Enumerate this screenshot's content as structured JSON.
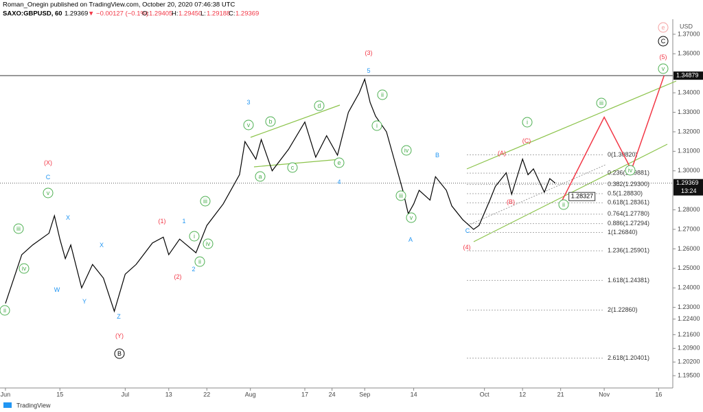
{
  "header": {
    "author_line": "Roman_Onegin published on TradingView.com, October 20, 2020 07:46:38 UTC",
    "symbol": "SAXO:GBPUSD, 60",
    "last": "1.29369",
    "change": "▼ −0.00127 (−0.1%)",
    "o_key": "O:",
    "o": "1.29405",
    "h_key": "H:",
    "h": "1.29450",
    "l_key": "L:",
    "l": "1.29188",
    "c_key": "C:",
    "c": "1.29369"
  },
  "chart_data": {
    "type": "line",
    "currency": "USD",
    "x": [
      0,
      3,
      5,
      8,
      9,
      10,
      11,
      12,
      14,
      16,
      18,
      20,
      22,
      24,
      27,
      29,
      30,
      32,
      35,
      37,
      40,
      43,
      44,
      46,
      47,
      49,
      52,
      55,
      57,
      59,
      61,
      63,
      65,
      66,
      67,
      68,
      70,
      72,
      73,
      74,
      75,
      76,
      78,
      79,
      81,
      82,
      84,
      86,
      87,
      89,
      90,
      92,
      93,
      94,
      95,
      96,
      97,
      99,
      100,
      101
    ],
    "series": [
      {
        "color": "#000000",
        "values": [
          1.232,
          1.257,
          1.262,
          1.268,
          1.277,
          1.265,
          1.255,
          1.262,
          1.24,
          1.252,
          1.245,
          1.228,
          1.247,
          1.252,
          1.263,
          1.266,
          1.257,
          1.265,
          1.258,
          1.272,
          1.283,
          1.298,
          1.315,
          1.306,
          1.316,
          1.3,
          1.311,
          1.325,
          1.307,
          1.318,
          1.308,
          1.33,
          1.34,
          1.347,
          1.335,
          1.328,
          1.32,
          1.3,
          1.29,
          1.278,
          1.283,
          1.29,
          1.285,
          1.297,
          1.29,
          1.282,
          1.275,
          1.27,
          1.272,
          1.285,
          1.292,
          1.299,
          1.288,
          1.297,
          1.306,
          1.298,
          1.301,
          1.289,
          1.296,
          1.2937
        ]
      }
    ],
    "projection": {
      "x": [
        102,
        110,
        115,
        121
      ],
      "values": [
        1.2833,
        1.3275,
        1.3005,
        1.3488
      ],
      "color": "#f23645",
      "label": "1.28327"
    },
    "xlim": [
      -1,
      122.6
    ],
    "xticks": [
      {
        "value": 0,
        "label": "Jun"
      },
      {
        "value": 10,
        "label": "15"
      },
      {
        "value": 22,
        "label": "Jul"
      },
      {
        "value": 30,
        "label": "13"
      },
      {
        "value": 37,
        "label": "22"
      },
      {
        "value": 45,
        "label": "Aug"
      },
      {
        "value": 55,
        "label": "17"
      },
      {
        "value": 60,
        "label": "24"
      },
      {
        "value": 66,
        "label": "Sep"
      },
      {
        "value": 75,
        "label": "14"
      },
      {
        "value": 88,
        "label": "Oct"
      },
      {
        "value": 95,
        "label": "12"
      },
      {
        "value": 102,
        "label": "21"
      },
      {
        "value": 110,
        "label": "Nov"
      },
      {
        "value": 120,
        "label": "16"
      }
    ],
    "ylim": [
      1.1887,
      1.377
    ],
    "yticks": [
      {
        "value": 1.37,
        "label": "1.37000"
      },
      {
        "value": 1.36,
        "label": "1.36000"
      },
      {
        "value": 1.34,
        "label": "1.34000"
      },
      {
        "value": 1.33,
        "label": "1.33000"
      },
      {
        "value": 1.32,
        "label": "1.32000"
      },
      {
        "value": 1.31,
        "label": "1.31000"
      },
      {
        "value": 1.3,
        "label": "1.30000"
      },
      {
        "value": 1.28,
        "label": "1.28000"
      },
      {
        "value": 1.27,
        "label": "1.27000"
      },
      {
        "value": 1.26,
        "label": "1.26000"
      },
      {
        "value": 1.25,
        "label": "1.25000"
      },
      {
        "value": 1.24,
        "label": "1.24000"
      },
      {
        "value": 1.23,
        "label": "1.23000"
      },
      {
        "value": 1.224,
        "label": "1.22400"
      },
      {
        "value": 1.216,
        "label": "1.21600"
      },
      {
        "value": 1.209,
        "label": "1.20900"
      },
      {
        "value": 1.202,
        "label": "1.20200"
      },
      {
        "value": 1.195,
        "label": "1.19500"
      }
    ],
    "price_line": {
      "value": 1.34879,
      "label": "1.34879"
    },
    "current_price": {
      "value": 1.29369,
      "label": "1.29369",
      "countdown": "13:24"
    },
    "fib_levels": [
      {
        "value": 1.3082,
        "label": "0(1.30820)"
      },
      {
        "value": 1.29881,
        "label": "0.236(1.29881)"
      },
      {
        "value": 1.293,
        "label": "0.382(1.29300)"
      },
      {
        "value": 1.2883,
        "label": "0.5(1.28830)"
      },
      {
        "value": 1.28361,
        "label": "0.618(1.28361)"
      },
      {
        "value": 1.2778,
        "label": "0.764(1.27780)"
      },
      {
        "value": 1.27294,
        "label": "0.886(1.27294)"
      },
      {
        "value": 1.2684,
        "label": "1(1.26840)"
      },
      {
        "value": 1.25901,
        "label": "1.236(1.25901)"
      },
      {
        "value": 1.24381,
        "label": "1.618(1.24381)"
      },
      {
        "value": 1.2286,
        "label": "2(1.22860)"
      },
      {
        "value": 1.20401,
        "label": "2.618(1.20401)"
      }
    ],
    "annotations": [
      {
        "text": "(3)",
        "color": "#f23645"
      },
      {
        "text": "(X)",
        "color": "#f23645"
      },
      {
        "text": "(1)",
        "color": "#f23645"
      },
      {
        "text": "(2)",
        "color": "#f23645"
      },
      {
        "text": "(Y)",
        "color": "#f23645"
      },
      {
        "text": "(A)",
        "color": "#f23645"
      },
      {
        "text": "(C)",
        "color": "#f23645"
      },
      {
        "text": "(B)",
        "color": "#f23645"
      },
      {
        "text": "(4)",
        "color": "#f23645"
      },
      {
        "text": "(5)",
        "color": "#f23645"
      },
      {
        "text": "e",
        "color": "#f4a0a0",
        "circled": true
      },
      {
        "text": "5",
        "color": "#2196f3"
      },
      {
        "text": "3",
        "color": "#2196f3"
      },
      {
        "text": "4",
        "color": "#2196f3"
      },
      {
        "text": "C",
        "color": "#2196f3"
      },
      {
        "text": "X",
        "color": "#2196f3"
      },
      {
        "text": "X",
        "color": "#2196f3"
      },
      {
        "text": "W",
        "color": "#2196f3"
      },
      {
        "text": "Y",
        "color": "#2196f3"
      },
      {
        "text": "Z",
        "color": "#2196f3"
      },
      {
        "text": "1",
        "color": "#2196f3"
      },
      {
        "text": "2",
        "color": "#2196f3"
      },
      {
        "text": "B",
        "color": "#2196f3"
      },
      {
        "text": "A",
        "color": "#2196f3"
      },
      {
        "text": "C",
        "color": "#2196f3"
      },
      {
        "text": "v",
        "color": "#4caf50",
        "circled": true
      },
      {
        "text": "iii",
        "color": "#4caf50",
        "circled": true
      },
      {
        "text": "iv",
        "color": "#4caf50",
        "circled": true
      },
      {
        "text": "ii",
        "color": "#4caf50",
        "circled": true
      },
      {
        "text": "i",
        "color": "#4caf50",
        "circled": true
      },
      {
        "text": "iii",
        "color": "#4caf50",
        "circled": true
      },
      {
        "text": "iv",
        "color": "#4caf50",
        "circled": true
      },
      {
        "text": "ii",
        "color": "#4caf50",
        "circled": true
      },
      {
        "text": "v",
        "color": "#4caf50",
        "circled": true
      },
      {
        "text": "b",
        "color": "#4caf50",
        "circled": true
      },
      {
        "text": "d",
        "color": "#4caf50",
        "circled": true
      },
      {
        "text": "a",
        "color": "#4caf50",
        "circled": true
      },
      {
        "text": "c",
        "color": "#4caf50",
        "circled": true
      },
      {
        "text": "e",
        "color": "#4caf50",
        "circled": true
      },
      {
        "text": "ii",
        "color": "#4caf50",
        "circled": true
      },
      {
        "text": "i",
        "color": "#4caf50",
        "circled": true
      },
      {
        "text": "iv",
        "color": "#4caf50",
        "circled": true
      },
      {
        "text": "iii",
        "color": "#4caf50",
        "circled": true
      },
      {
        "text": "v",
        "color": "#4caf50",
        "circled": true
      },
      {
        "text": "i",
        "color": "#4caf50",
        "circled": true
      },
      {
        "text": "iii",
        "color": "#4caf50",
        "circled": true
      },
      {
        "text": "v",
        "color": "#4caf50",
        "circled": true
      },
      {
        "text": "ii",
        "color": "#4caf50",
        "circled": true
      },
      {
        "text": "iv",
        "color": "#4caf50",
        "circled": true
      },
      {
        "text": "B",
        "color": "#000000",
        "circled": true
      },
      {
        "text": "C",
        "color": "#000000",
        "circled": true
      }
    ]
  },
  "footer": {
    "brand": "TradingView"
  }
}
